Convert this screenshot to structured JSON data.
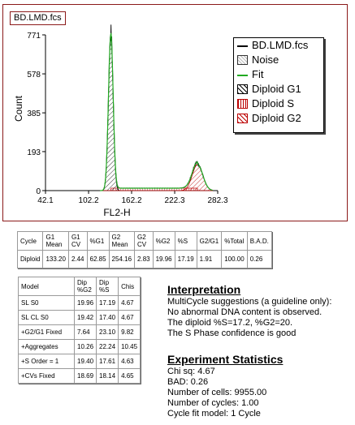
{
  "file_tab": "BD.LMD.fcs",
  "chart_data": {
    "type": "histogram",
    "xlabel": "FL2-H",
    "ylabel": "Count",
    "xlim": [
      42.1,
      282.3
    ],
    "ylim": [
      0,
      771
    ],
    "x_ticks": [
      "42.1",
      "102.2",
      "162.2",
      "222.3",
      "282.3"
    ],
    "y_ticks": [
      "0",
      "193",
      "385",
      "578",
      "771"
    ],
    "legend": [
      "BD.LMD.fcs",
      "Noise",
      "Fit",
      "Diploid G1",
      "Diploid S",
      "Diploid G2"
    ],
    "colors": {
      "data": "#000000",
      "fit": "#22aa22",
      "g1": "#000000",
      "s": "#bb0000",
      "g2": "#bb0000"
    },
    "g1_peak": {
      "x": 133.2,
      "y": 771
    },
    "g2_peak": {
      "x": 254.16,
      "y": 130
    }
  },
  "cycle_table": {
    "headers": [
      "Cycle",
      "G1\nMean",
      "G1\nCV",
      "%G1",
      "G2\nMean",
      "G2\nCV",
      "%G2",
      "%S",
      "G2/G1",
      "%Total",
      "B.A.D."
    ],
    "row": [
      "Diploid",
      "133.20",
      "2.44",
      "62.85",
      "254.16",
      "2.83",
      "19.96",
      "17.19",
      "1.91",
      "100.00",
      "0.26"
    ]
  },
  "model_table": {
    "headers": [
      "Model",
      "Dip\n%G2",
      "Dip\n%S",
      "Chis"
    ],
    "rows": [
      [
        "SL S0",
        "19.96",
        "17.19",
        "4.67"
      ],
      [
        "SL CL S0",
        "19.42",
        "17.40",
        "4.67"
      ],
      [
        "+G2/G1 Fixed",
        "7.64",
        "23.10",
        "9.82"
      ],
      [
        "+Aggregates",
        "10.26",
        "22.24",
        "10.45"
      ],
      [
        "+S Order = 1",
        "19.40",
        "17.61",
        "4.63"
      ],
      [
        "+CVs Fixed",
        "18.69",
        "18.14",
        "4.65"
      ]
    ]
  },
  "interpretation": {
    "title": "Interpretation",
    "lines": [
      "MultiCycle suggestions (a guideline only):",
      "No abnormal DNA content is observed.",
      "The diploid %S=17.2, %G2=20.",
      "The S Phase confidence is good"
    ]
  },
  "statistics": {
    "title": "Experiment Statistics",
    "lines": [
      "Chi sq: 4.67",
      "BAD: 0.26",
      "Number of cells: 9955.00",
      "Number of cycles: 1.00",
      "Cycle fit model: 1 Cycle"
    ]
  }
}
